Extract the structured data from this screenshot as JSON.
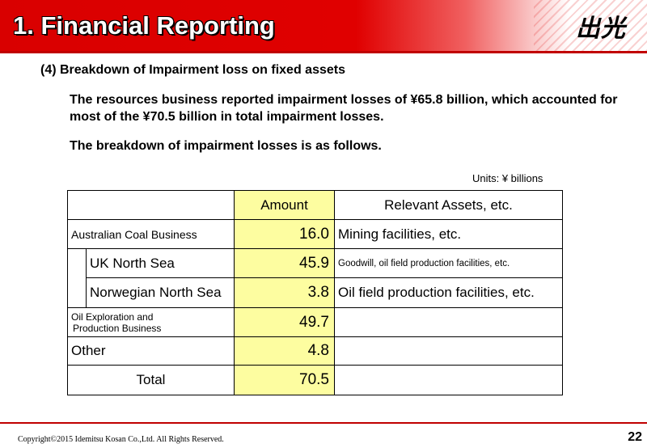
{
  "header": {
    "title": "1. Financial Reporting",
    "logo_text": "出光",
    "bar_color": "#e00000"
  },
  "section": {
    "heading": "(4) Breakdown of Impairment loss on fixed assets",
    "paragraph1": "The resources business reported impairment losses of ¥65.8 billion, which accounted for most of the ¥70.5 billion in total impairment losses.",
    "paragraph2": "The breakdown of impairment losses is as follows."
  },
  "table": {
    "units": "Units: ¥ billions",
    "headers": {
      "amount": "Amount",
      "assets": "Relevant Assets, etc."
    },
    "rows": [
      {
        "name": "Australian Coal Business",
        "amount": "16.0",
        "assets": "Mining facilities, etc."
      },
      {
        "name": "UK North Sea",
        "amount": "45.9",
        "assets": "Goodwill, oil field production facilities, etc."
      },
      {
        "name": "Norwegian North Sea",
        "amount": "3.8",
        "assets": "Oil field production facilities, etc."
      },
      {
        "name_line1": "Oil Exploration and",
        "name_line2": "Production Business",
        "amount": "49.7",
        "assets": ""
      },
      {
        "name": "Other",
        "amount": "4.8",
        "assets": ""
      }
    ],
    "total": {
      "name": "Total",
      "amount": "70.5"
    },
    "amount_fill_color": "#fdfda0"
  },
  "footer": {
    "copyright": "Copyright©2015 Idemitsu Kosan Co.,Ltd. All Rights Reserved.",
    "page_number": "22"
  }
}
